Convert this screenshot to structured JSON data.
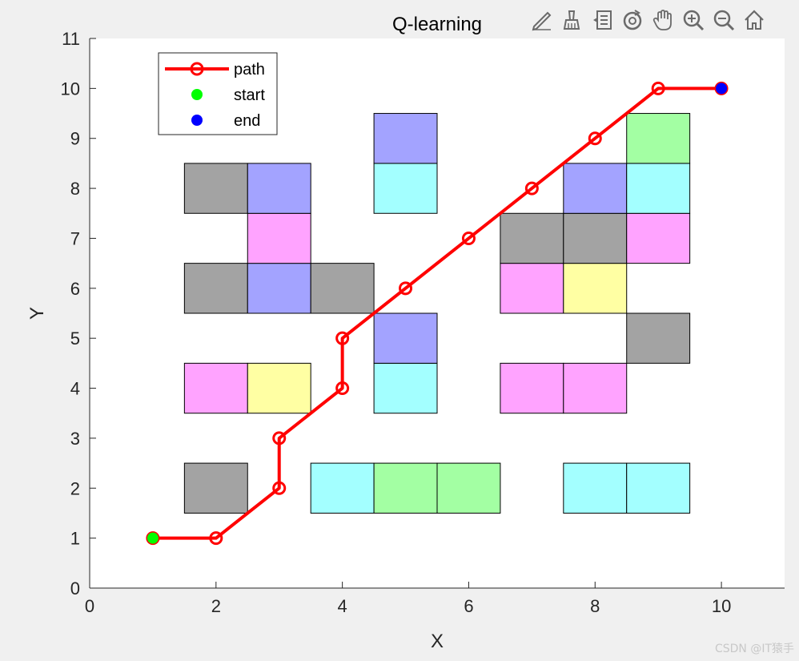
{
  "toolbar": {
    "icons": [
      "edit-plot-icon",
      "brush-icon",
      "data-tips-icon",
      "rotate-3d-icon",
      "pan-icon",
      "zoom-in-icon",
      "zoom-out-icon",
      "home-icon"
    ]
  },
  "watermark": "CSDN @IT猿手",
  "colors": {
    "background": "#f0f0f0",
    "axes_bg": "#ffffff",
    "path": "#ff0000",
    "start": "#00ff00",
    "end": "#0000ff",
    "gray": "#a3a3a3",
    "blue": "#a3a3ff",
    "cyan": "#a3ffff",
    "magenta": "#ffa3ff",
    "yellow": "#ffffa3",
    "green": "#a3ffa3"
  },
  "chart_data": {
    "type": "line",
    "title": "Q-learning",
    "xlabel": "X",
    "ylabel": "Y",
    "xlim": [
      0,
      11
    ],
    "ylim": [
      0,
      11
    ],
    "xticks": [
      0,
      2,
      4,
      6,
      8,
      10
    ],
    "yticks": [
      0,
      1,
      2,
      3,
      4,
      5,
      6,
      7,
      8,
      9,
      10,
      11
    ],
    "grid": false,
    "legend": {
      "placement": "top-left",
      "entries": [
        {
          "label": "path",
          "kind": "line-marker",
          "color": "#ff0000"
        },
        {
          "label": "start",
          "kind": "dot",
          "color": "#00ff00"
        },
        {
          "label": "end",
          "kind": "dot",
          "color": "#0000ff"
        }
      ]
    },
    "series": [
      {
        "name": "path",
        "x": [
          1,
          2,
          3,
          3,
          4,
          4,
          5,
          6,
          7,
          8,
          9,
          10
        ],
        "y": [
          1,
          1,
          2,
          3,
          4,
          5,
          6,
          7,
          8,
          9,
          10,
          10
        ]
      },
      {
        "name": "start",
        "x": [
          1
        ],
        "y": [
          1
        ]
      },
      {
        "name": "end",
        "x": [
          10
        ],
        "y": [
          10
        ]
      }
    ],
    "obstacles": [
      {
        "x": 2,
        "y": 2,
        "color": "gray"
      },
      {
        "x": 4,
        "y": 2,
        "color": "cyan"
      },
      {
        "x": 5,
        "y": 2,
        "color": "green"
      },
      {
        "x": 6,
        "y": 2,
        "color": "green"
      },
      {
        "x": 8,
        "y": 2,
        "color": "cyan"
      },
      {
        "x": 9,
        "y": 2,
        "color": "cyan"
      },
      {
        "x": 2,
        "y": 4,
        "color": "magenta"
      },
      {
        "x": 3,
        "y": 4,
        "color": "yellow"
      },
      {
        "x": 5,
        "y": 4,
        "color": "cyan"
      },
      {
        "x": 7,
        "y": 4,
        "color": "magenta"
      },
      {
        "x": 8,
        "y": 4,
        "color": "magenta"
      },
      {
        "x": 5,
        "y": 5,
        "color": "blue"
      },
      {
        "x": 9,
        "y": 5,
        "color": "gray"
      },
      {
        "x": 2,
        "y": 6,
        "color": "gray"
      },
      {
        "x": 3,
        "y": 6,
        "color": "blue"
      },
      {
        "x": 4,
        "y": 6,
        "color": "gray"
      },
      {
        "x": 7,
        "y": 6,
        "color": "magenta"
      },
      {
        "x": 8,
        "y": 6,
        "color": "yellow"
      },
      {
        "x": 3,
        "y": 7,
        "color": "magenta"
      },
      {
        "x": 7,
        "y": 7,
        "color": "gray"
      },
      {
        "x": 8,
        "y": 7,
        "color": "gray"
      },
      {
        "x": 9,
        "y": 7,
        "color": "magenta"
      },
      {
        "x": 2,
        "y": 8,
        "color": "gray"
      },
      {
        "x": 3,
        "y": 8,
        "color": "blue"
      },
      {
        "x": 5,
        "y": 8,
        "color": "cyan"
      },
      {
        "x": 8,
        "y": 8,
        "color": "blue"
      },
      {
        "x": 9,
        "y": 8,
        "color": "cyan"
      },
      {
        "x": 5,
        "y": 9,
        "color": "blue"
      },
      {
        "x": 9,
        "y": 9,
        "color": "green"
      }
    ]
  }
}
